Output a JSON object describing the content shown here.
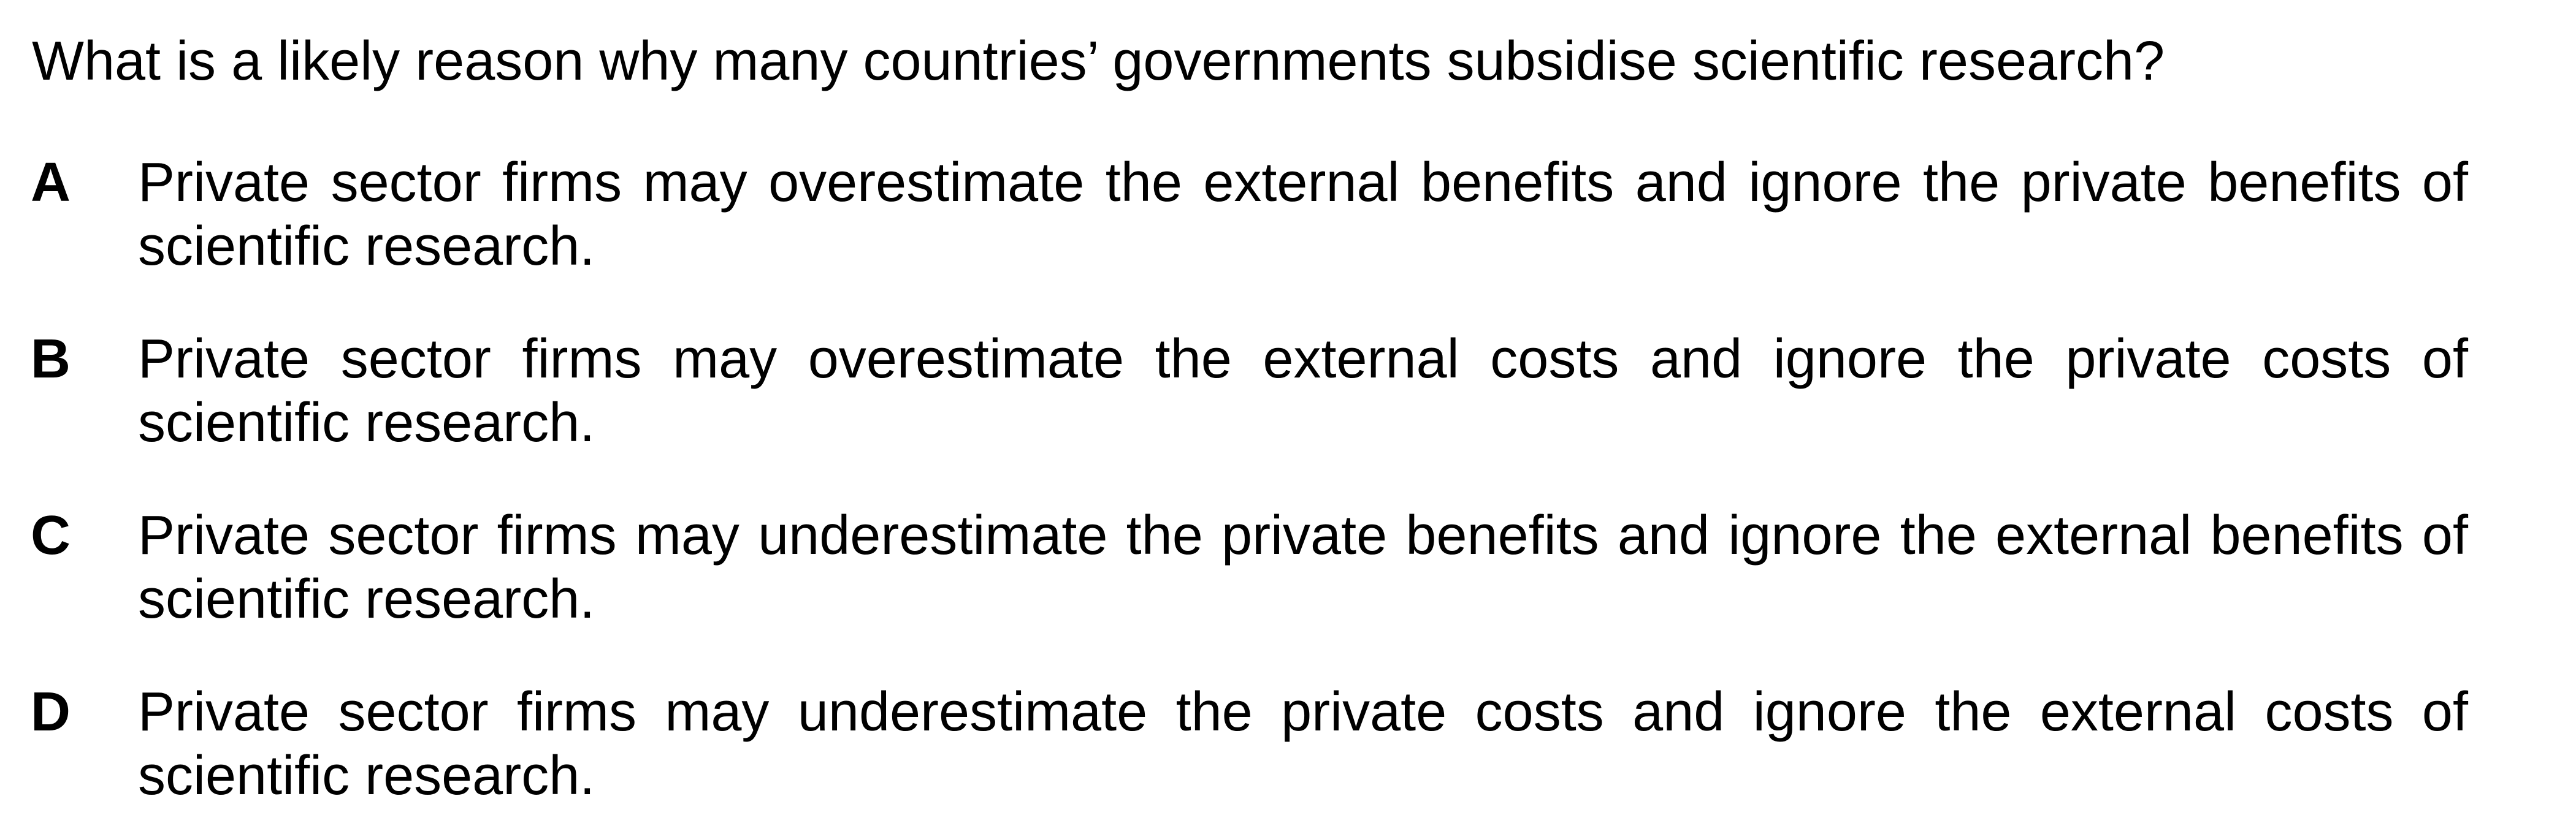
{
  "question": {
    "text": "What is a likely reason why many countries’ governments subsidise scientific research?"
  },
  "options": [
    {
      "letter": "A",
      "text": "Private sector firms may overestimate the external benefits and ignore the private benefits of scientific research."
    },
    {
      "letter": "B",
      "text": "Private sector firms may overestimate the external costs and ignore the private costs of scientific research."
    },
    {
      "letter": "C",
      "text": "Private sector firms may underestimate the private benefits and ignore the external benefits of scientific research."
    },
    {
      "letter": "D",
      "text": "Private sector firms may underestimate the private costs and ignore the external costs of scientific research."
    }
  ]
}
